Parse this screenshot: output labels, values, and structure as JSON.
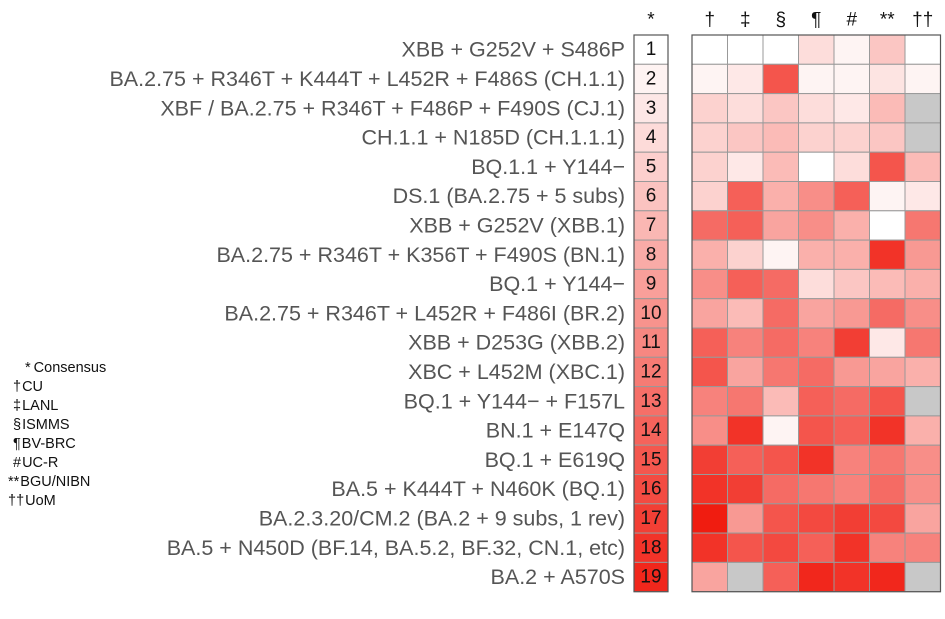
{
  "chart_data": {
    "type": "heatmap",
    "consensus_header": "*",
    "columns": [
      "†",
      "‡",
      "§",
      "¶",
      "#",
      "**",
      "††"
    ],
    "rows": [
      {
        "rank": "1",
        "label": "XBB + G252V + S486P"
      },
      {
        "rank": "2",
        "label": "BA.2.75 + R346T + K444T + L452R + F486S (CH.1.1)"
      },
      {
        "rank": "3",
        "label": "XBF / BA.2.75 + R346T + F486P + F490S (CJ.1)"
      },
      {
        "rank": "4",
        "label": "CH.1.1 + N185D (CH.1.1.1)"
      },
      {
        "rank": "5",
        "label": "BQ.1.1 + Y144−"
      },
      {
        "rank": "6",
        "label": "DS.1 (BA.2.75 + 5 subs)"
      },
      {
        "rank": "7",
        "label": "XBB + G252V (XBB.1)"
      },
      {
        "rank": "8",
        "label": "BA.2.75 + R346T + K356T + F490S (BN.1)"
      },
      {
        "rank": "9",
        "label": "BQ.1 + Y144−"
      },
      {
        "rank": "10",
        "label": "BA.2.75 + R346T + L452R + F486I (BR.2)"
      },
      {
        "rank": "11",
        "label": "XBB + D253G (XBB.2)"
      },
      {
        "rank": "12",
        "label": "XBC + L452M (XBC.1)"
      },
      {
        "rank": "13",
        "label": "BQ.1 + Y144− + F157L"
      },
      {
        "rank": "14",
        "label": "BN.1 + E147Q"
      },
      {
        "rank": "15",
        "label": "BQ.1 + E619Q"
      },
      {
        "rank": "16",
        "label": "BA.5 + K444T + N460K (BQ.1)"
      },
      {
        "rank": "17",
        "label": "BA.2.3.20/CM.2 (BA.2 + 9 subs, 1 rev)"
      },
      {
        "rank": "18",
        "label": "BA.5 + N450D (BF.14, BA.5.2, BF.32, CN.1, etc)"
      },
      {
        "rank": "19",
        "label": "BA.2 + A570S"
      }
    ],
    "consensus_values": [
      1,
      2,
      3,
      4,
      5,
      6,
      7,
      8,
      9,
      10,
      11,
      12,
      13,
      14,
      15,
      16,
      17,
      18,
      19
    ],
    "values": [
      [
        0.0,
        0.0,
        0.0,
        0.15,
        0.05,
        0.25,
        0.0
      ],
      [
        0.05,
        0.1,
        0.75,
        0.05,
        0.05,
        0.12,
        0.05
      ],
      [
        0.2,
        0.15,
        0.25,
        0.15,
        0.1,
        0.3,
        null
      ],
      [
        0.2,
        0.25,
        0.3,
        0.2,
        0.2,
        0.25,
        null
      ],
      [
        0.2,
        0.1,
        0.3,
        0.0,
        0.15,
        0.75,
        0.3
      ],
      [
        0.2,
        0.7,
        0.35,
        0.5,
        0.7,
        0.05,
        0.1
      ],
      [
        0.65,
        0.7,
        0.4,
        0.5,
        0.35,
        0.0,
        0.6
      ],
      [
        0.35,
        0.2,
        0.05,
        0.35,
        0.35,
        0.9,
        0.45
      ],
      [
        0.5,
        0.7,
        0.65,
        0.15,
        0.25,
        0.3,
        0.35
      ],
      [
        0.4,
        0.3,
        0.65,
        0.4,
        0.45,
        0.65,
        0.5
      ],
      [
        0.7,
        0.55,
        0.65,
        0.55,
        0.85,
        0.1,
        0.6
      ],
      [
        0.75,
        0.4,
        0.6,
        0.65,
        0.45,
        0.4,
        0.35
      ],
      [
        0.55,
        0.6,
        0.3,
        0.7,
        0.65,
        0.75,
        null
      ],
      [
        0.5,
        0.9,
        0.05,
        0.75,
        0.7,
        0.9,
        0.35
      ],
      [
        0.85,
        0.7,
        0.75,
        0.9,
        0.55,
        0.6,
        0.5
      ],
      [
        0.9,
        0.85,
        0.65,
        0.6,
        0.55,
        0.65,
        0.5
      ],
      [
        1.0,
        0.45,
        0.75,
        0.8,
        0.85,
        0.8,
        0.4
      ],
      [
        0.9,
        0.75,
        0.8,
        0.7,
        0.9,
        0.55,
        0.55
      ],
      [
        0.4,
        null,
        0.7,
        0.95,
        0.9,
        0.95,
        null
      ]
    ],
    "missing_color": "#c8c8c8",
    "color_low": "#ffffff",
    "color_high": "#f01c10",
    "grid_color": "#999999",
    "legend": [
      {
        "symbol": "*",
        "name": "Consensus"
      },
      {
        "symbol": "†",
        "name": "CU"
      },
      {
        "symbol": "‡",
        "name": "LANL"
      },
      {
        "symbol": "§",
        "name": "ISMMS"
      },
      {
        "symbol": "¶",
        "name": "BV-BRC"
      },
      {
        "symbol": "#",
        "name": "UC-R"
      },
      {
        "symbol": "**",
        "name": "BGU/NIBN"
      },
      {
        "symbol": "††",
        "name": "UoM"
      }
    ]
  }
}
